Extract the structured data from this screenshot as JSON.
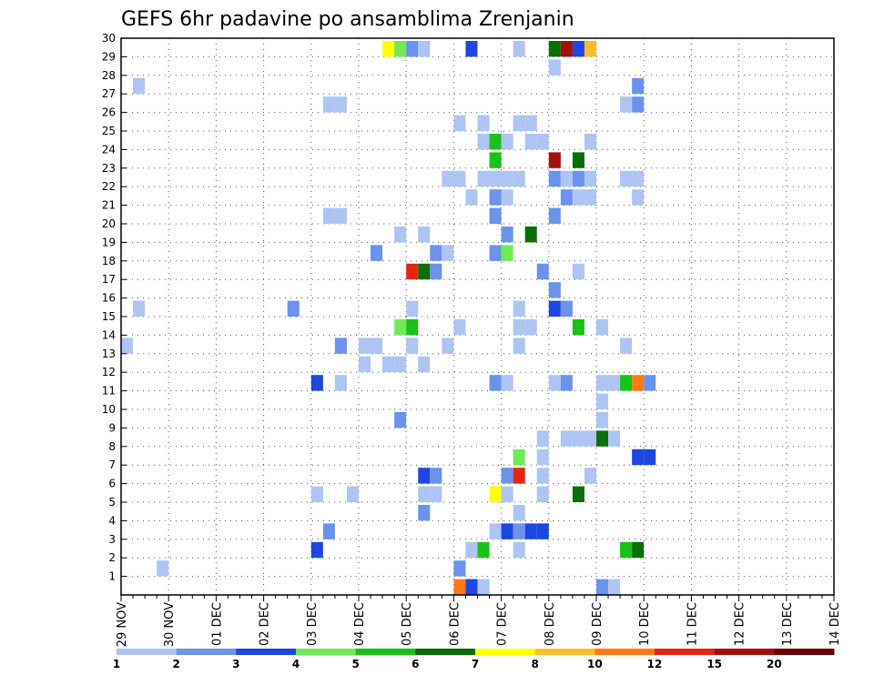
{
  "chart_data": {
    "type": "heatmap",
    "title": "GEFS 6hr padavine po ansamblima Zrenjanin",
    "x_tick_labels": [
      "29 NOV",
      "30 NOV",
      "01 DEC",
      "02 DEC",
      "03 DEC",
      "04 DEC",
      "05 DEC",
      "06 DEC",
      "07 DEC",
      "08 DEC",
      "09 DEC",
      "10 DEC",
      "11 DEC",
      "12 DEC",
      "13 DEC",
      "14 DEC"
    ],
    "y_tick_labels": [
      "1",
      "2",
      "3",
      "4",
      "5",
      "6",
      "7",
      "8",
      "9",
      "10",
      "11",
      "12",
      "13",
      "14",
      "15",
      "16",
      "17",
      "18",
      "19",
      "20",
      "21",
      "22",
      "23",
      "24",
      "25",
      "26",
      "27",
      "28",
      "29",
      "30"
    ],
    "steps_per_day": 4,
    "y_range": [
      0,
      30
    ],
    "grid": true,
    "legend": {
      "position": "bottom",
      "labels": [
        "1",
        "2",
        "3",
        "4",
        "5",
        "6",
        "7",
        "8",
        "10",
        "12",
        "15",
        "20"
      ],
      "colors": [
        "#aec4f2",
        "#6b92ec",
        "#1c47e0",
        "#6fec52",
        "#16c316",
        "#0a6e0a",
        "#ffff00",
        "#ffbe28",
        "#ff7a14",
        "#e3260f",
        "#a50f0f",
        "#6c0303"
      ]
    },
    "cells": [
      [
        0,
        13,
        0
      ],
      [
        1,
        15,
        0
      ],
      [
        1,
        27,
        0
      ],
      [
        3,
        1,
        0
      ],
      [
        14,
        15,
        1
      ],
      [
        16,
        2,
        2
      ],
      [
        16,
        11,
        2
      ],
      [
        16,
        5,
        0
      ],
      [
        17,
        20,
        0
      ],
      [
        17,
        26,
        0
      ],
      [
        17,
        3,
        1
      ],
      [
        18,
        26,
        0
      ],
      [
        18,
        20,
        0
      ],
      [
        18,
        13,
        1
      ],
      [
        18,
        11,
        0
      ],
      [
        19,
        5,
        0
      ],
      [
        20,
        12,
        0
      ],
      [
        20,
        13,
        0
      ],
      [
        21,
        18,
        1
      ],
      [
        21,
        13,
        0
      ],
      [
        22,
        29,
        6
      ],
      [
        22,
        12,
        0
      ],
      [
        23,
        29,
        3
      ],
      [
        23,
        14,
        3
      ],
      [
        23,
        19,
        0
      ],
      [
        23,
        12,
        0
      ],
      [
        23,
        9,
        1
      ],
      [
        24,
        29,
        1
      ],
      [
        24,
        14,
        4
      ],
      [
        24,
        17,
        9
      ],
      [
        24,
        15,
        0
      ],
      [
        24,
        13,
        0
      ],
      [
        25,
        29,
        0
      ],
      [
        25,
        6,
        2
      ],
      [
        25,
        5,
        0
      ],
      [
        25,
        4,
        1
      ],
      [
        25,
        12,
        0
      ],
      [
        25,
        19,
        0
      ],
      [
        25,
        17,
        5
      ],
      [
        26,
        6,
        1
      ],
      [
        26,
        5,
        0
      ],
      [
        26,
        18,
        1
      ],
      [
        26,
        17,
        1
      ],
      [
        27,
        18,
        0
      ],
      [
        27,
        22,
        0
      ],
      [
        27,
        13,
        0
      ],
      [
        28,
        25,
        0
      ],
      [
        28,
        22,
        0
      ],
      [
        28,
        14,
        0
      ],
      [
        28,
        1,
        1
      ],
      [
        28,
        0,
        8
      ],
      [
        29,
        29,
        2
      ],
      [
        29,
        21,
        0
      ],
      [
        29,
        2,
        0
      ],
      [
        29,
        0,
        2
      ],
      [
        30,
        2,
        4
      ],
      [
        30,
        0,
        0
      ],
      [
        30,
        25,
        0
      ],
      [
        30,
        22,
        0
      ],
      [
        30,
        24,
        0
      ],
      [
        31,
        24,
        4
      ],
      [
        31,
        23,
        4
      ],
      [
        31,
        22,
        0
      ],
      [
        31,
        21,
        1
      ],
      [
        31,
        20,
        1
      ],
      [
        31,
        18,
        1
      ],
      [
        31,
        11,
        1
      ],
      [
        31,
        5,
        6
      ],
      [
        31,
        3,
        0
      ],
      [
        32,
        24,
        0
      ],
      [
        32,
        22,
        0
      ],
      [
        32,
        21,
        0
      ],
      [
        32,
        19,
        1
      ],
      [
        32,
        18,
        3
      ],
      [
        32,
        11,
        0
      ],
      [
        32,
        3,
        2
      ],
      [
        32,
        5,
        0
      ],
      [
        32,
        6,
        1
      ],
      [
        33,
        29,
        0
      ],
      [
        33,
        25,
        0
      ],
      [
        33,
        22,
        0
      ],
      [
        33,
        15,
        0
      ],
      [
        33,
        14,
        0
      ],
      [
        33,
        13,
        0
      ],
      [
        33,
        7,
        3
      ],
      [
        33,
        6,
        9
      ],
      [
        33,
        2,
        0
      ],
      [
        33,
        3,
        1
      ],
      [
        33,
        4,
        0
      ],
      [
        34,
        25,
        0
      ],
      [
        34,
        24,
        0
      ],
      [
        34,
        19,
        5
      ],
      [
        34,
        14,
        0
      ],
      [
        34,
        3,
        2
      ],
      [
        35,
        17,
        1
      ],
      [
        35,
        24,
        0
      ],
      [
        35,
        6,
        0
      ],
      [
        35,
        7,
        0
      ],
      [
        35,
        8,
        0
      ],
      [
        35,
        3,
        2
      ],
      [
        35,
        5,
        0
      ],
      [
        36,
        29,
        5
      ],
      [
        36,
        28,
        0
      ],
      [
        36,
        23,
        10
      ],
      [
        36,
        22,
        1
      ],
      [
        36,
        20,
        1
      ],
      [
        36,
        11,
        0
      ],
      [
        36,
        15,
        2
      ],
      [
        36,
        16,
        1
      ],
      [
        37,
        29,
        10
      ],
      [
        37,
        22,
        0
      ],
      [
        37,
        21,
        1
      ],
      [
        37,
        15,
        1
      ],
      [
        37,
        11,
        1
      ],
      [
        37,
        8,
        0
      ],
      [
        38,
        29,
        2
      ],
      [
        38,
        23,
        5
      ],
      [
        38,
        22,
        1
      ],
      [
        38,
        21,
        0
      ],
      [
        38,
        17,
        0
      ],
      [
        38,
        14,
        4
      ],
      [
        38,
        8,
        0
      ],
      [
        38,
        5,
        5
      ],
      [
        39,
        29,
        7
      ],
      [
        39,
        24,
        0
      ],
      [
        39,
        22,
        0
      ],
      [
        39,
        21,
        0
      ],
      [
        39,
        8,
        0
      ],
      [
        39,
        6,
        0
      ],
      [
        40,
        14,
        0
      ],
      [
        40,
        11,
        0
      ],
      [
        40,
        8,
        5
      ],
      [
        40,
        9,
        0
      ],
      [
        40,
        10,
        0
      ],
      [
        40,
        0,
        1
      ],
      [
        41,
        8,
        0
      ],
      [
        41,
        11,
        0
      ],
      [
        41,
        0,
        0
      ],
      [
        42,
        26,
        0
      ],
      [
        42,
        22,
        0
      ],
      [
        42,
        13,
        0
      ],
      [
        42,
        11,
        4
      ],
      [
        42,
        2,
        4
      ],
      [
        43,
        27,
        1
      ],
      [
        43,
        26,
        1
      ],
      [
        43,
        22,
        0
      ],
      [
        43,
        21,
        0
      ],
      [
        43,
        11,
        8
      ],
      [
        43,
        7,
        2
      ],
      [
        43,
        2,
        5
      ],
      [
        44,
        11,
        1
      ],
      [
        44,
        7,
        2
      ]
    ]
  }
}
